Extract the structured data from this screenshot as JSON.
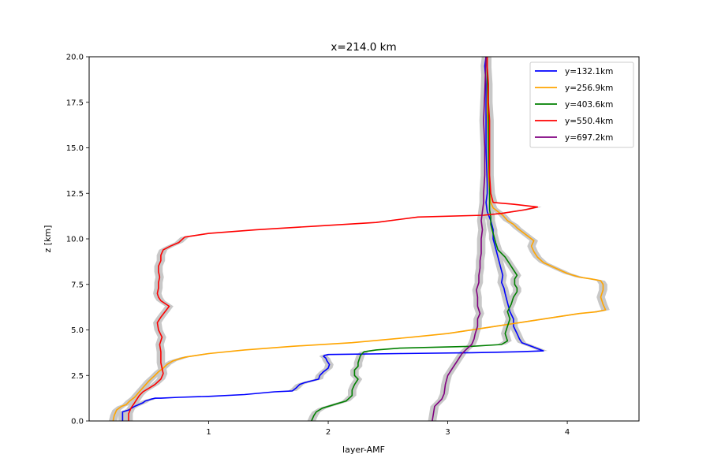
{
  "chart_data": {
    "type": "line",
    "title": "x=214.0 km",
    "xlabel": "layer-AMF",
    "ylabel": "z [km]",
    "xlim": [
      0.0,
      4.6
    ],
    "ylim": [
      0.0,
      20.0
    ],
    "xticks": [
      1,
      2,
      3,
      4
    ],
    "yticks": [
      0.0,
      2.5,
      5.0,
      7.5,
      10.0,
      12.5,
      15.0,
      17.5,
      20.0
    ],
    "xtick_labels": [
      "1",
      "2",
      "3",
      "4"
    ],
    "ytick_labels": [
      "0.0",
      "2.5",
      "5.0",
      "7.5",
      "10.0",
      "12.5",
      "15.0",
      "17.5",
      "20.0"
    ],
    "grid": false,
    "legend_position": "upper-right",
    "uncertainty_band_color": "#c8c8c8",
    "series": [
      {
        "name": "y=132.1km",
        "color": "#0000ff",
        "x": [
          0.28,
          0.28,
          0.33,
          0.38,
          0.45,
          0.47,
          0.5,
          0.52,
          0.55,
          0.6,
          0.75,
          1.0,
          1.3,
          1.55,
          1.7,
          1.73,
          1.76,
          1.8,
          1.92,
          1.93,
          1.96,
          2.0,
          2.01,
          1.99,
          1.98,
          1.96,
          1.97,
          2.0,
          2.6,
          3.2,
          3.6,
          3.8,
          3.7,
          3.62,
          3.6,
          3.58,
          3.55,
          3.55,
          3.52,
          3.5,
          3.48,
          3.47,
          3.45,
          3.46,
          3.44,
          3.42,
          3.4,
          3.38,
          3.38,
          3.36,
          3.33,
          3.32,
          3.33,
          3.33,
          3.32,
          3.32,
          3.32,
          3.31,
          3.32
        ],
        "y": [
          0.0,
          0.5,
          0.6,
          0.8,
          1.0,
          1.1,
          1.15,
          1.2,
          1.25,
          1.25,
          1.3,
          1.35,
          1.45,
          1.6,
          1.65,
          1.8,
          2.0,
          2.1,
          2.3,
          2.5,
          2.7,
          2.9,
          3.1,
          3.3,
          3.45,
          3.55,
          3.6,
          3.65,
          3.7,
          3.75,
          3.8,
          3.85,
          4.1,
          4.3,
          4.5,
          4.8,
          5.2,
          5.6,
          6.0,
          6.5,
          7.0,
          7.3,
          7.6,
          8.0,
          8.5,
          9.0,
          9.5,
          10.0,
          10.5,
          11.0,
          11.5,
          12.0,
          12.5,
          13.0,
          15.0,
          17.0,
          18.5,
          19.5,
          20.0
        ]
      },
      {
        "name": "y=256.9km",
        "color": "#ffa500",
        "x": [
          0.2,
          0.21,
          0.23,
          0.27,
          0.31,
          0.34,
          0.38,
          0.42,
          0.46,
          0.5,
          0.55,
          0.58,
          0.62,
          0.65,
          0.7,
          0.8,
          1.0,
          1.3,
          1.7,
          2.2,
          2.7,
          3.0,
          3.3,
          3.6,
          3.9,
          4.1,
          4.25,
          4.32,
          4.3,
          4.28,
          4.3,
          4.3,
          4.28,
          4.2,
          4.1,
          4.0,
          3.9,
          3.8,
          3.75,
          3.72,
          3.7,
          3.72,
          3.68,
          3.62,
          3.58,
          3.55,
          3.5,
          3.46,
          3.42,
          3.38,
          3.36,
          3.35,
          3.34,
          3.34,
          3.33,
          3.33,
          3.33
        ],
        "y": [
          0.0,
          0.3,
          0.6,
          0.8,
          0.9,
          1.1,
          1.3,
          1.6,
          1.9,
          2.2,
          2.5,
          2.7,
          2.9,
          3.1,
          3.3,
          3.5,
          3.7,
          3.9,
          4.1,
          4.3,
          4.6,
          4.8,
          5.1,
          5.4,
          5.7,
          5.9,
          6.0,
          6.1,
          6.4,
          6.8,
          7.2,
          7.5,
          7.7,
          7.8,
          7.9,
          8.1,
          8.4,
          8.7,
          9.0,
          9.3,
          9.6,
          9.9,
          10.1,
          10.4,
          10.6,
          10.8,
          11.0,
          11.3,
          11.5,
          11.7,
          12.0,
          12.5,
          13.5,
          15.0,
          17.0,
          19.0,
          20.0
        ]
      },
      {
        "name": "y=403.6km",
        "color": "#008000",
        "x": [
          1.86,
          1.88,
          1.9,
          1.95,
          2.05,
          2.15,
          2.2,
          2.2,
          2.22,
          2.25,
          2.22,
          2.22,
          2.25,
          2.25,
          2.26,
          2.27,
          2.3,
          2.4,
          2.6,
          2.9,
          3.2,
          3.45,
          3.5,
          3.48,
          3.5,
          3.52,
          3.5,
          3.53,
          3.55,
          3.58,
          3.58,
          3.56,
          3.56,
          3.58,
          3.55,
          3.52,
          3.48,
          3.42,
          3.4,
          3.38,
          3.36,
          3.36,
          3.35,
          3.35,
          3.35,
          3.34,
          3.34,
          3.33,
          3.33
        ],
        "y": [
          0.0,
          0.3,
          0.5,
          0.7,
          0.9,
          1.1,
          1.4,
          1.7,
          2.0,
          2.3,
          2.5,
          2.8,
          3.0,
          3.2,
          3.4,
          3.6,
          3.8,
          3.9,
          4.0,
          4.05,
          4.1,
          4.2,
          4.4,
          4.8,
          5.2,
          5.6,
          6.0,
          6.4,
          6.8,
          7.1,
          7.3,
          7.5,
          7.8,
          8.0,
          8.3,
          8.6,
          9.0,
          9.4,
          9.8,
          10.3,
          10.8,
          11.2,
          11.6,
          12.0,
          13.0,
          15.0,
          17.0,
          19.0,
          20.0
        ]
      },
      {
        "name": "y=550.4km",
        "color": "#ff0000",
        "x": [
          0.33,
          0.33,
          0.35,
          0.38,
          0.4,
          0.42,
          0.45,
          0.5,
          0.55,
          0.6,
          0.62,
          0.6,
          0.6,
          0.59,
          0.61,
          0.58,
          0.57,
          0.6,
          0.67,
          0.6,
          0.58,
          0.57,
          0.58,
          0.58,
          0.59,
          0.58,
          0.58,
          0.6,
          0.6,
          0.62,
          0.68,
          0.75,
          0.8,
          1.0,
          1.4,
          1.9,
          2.4,
          2.75,
          3.3,
          3.45,
          3.65,
          3.75,
          3.55,
          3.38,
          3.36,
          3.35,
          3.35,
          3.35,
          3.34,
          3.34,
          3.33,
          3.33
        ],
        "y": [
          0.0,
          0.4,
          0.7,
          1.0,
          1.2,
          1.4,
          1.6,
          1.8,
          2.0,
          2.3,
          2.6,
          3.2,
          3.8,
          4.2,
          4.6,
          5.0,
          5.4,
          5.7,
          6.3,
          6.6,
          6.8,
          7.0,
          7.3,
          7.6,
          7.9,
          8.2,
          8.5,
          8.8,
          9.1,
          9.4,
          9.6,
          9.8,
          10.1,
          10.3,
          10.5,
          10.7,
          10.9,
          11.2,
          11.3,
          11.4,
          11.6,
          11.75,
          11.9,
          12.0,
          12.5,
          13.5,
          15.0,
          16.5,
          17.5,
          18.5,
          19.5,
          20.0
        ]
      },
      {
        "name": "y=697.2km",
        "color": "#800080",
        "x": [
          2.87,
          2.88,
          2.89,
          2.92,
          2.95,
          2.97,
          2.98,
          3.0,
          3.05,
          3.08,
          3.1,
          3.12,
          3.15,
          3.2,
          3.22,
          3.23,
          3.25,
          3.25,
          3.27,
          3.25,
          3.25,
          3.24,
          3.26,
          3.26,
          3.27,
          3.27,
          3.28,
          3.28,
          3.28,
          3.29,
          3.28,
          3.29,
          3.3,
          3.3,
          3.31,
          3.31,
          3.3,
          3.31,
          3.32
        ],
        "y": [
          0.0,
          0.4,
          0.8,
          1.0,
          1.2,
          1.5,
          2.0,
          2.5,
          3.0,
          3.3,
          3.5,
          3.7,
          3.9,
          4.2,
          4.5,
          4.8,
          5.2,
          5.6,
          5.9,
          6.3,
          6.8,
          7.2,
          7.6,
          8.0,
          8.4,
          8.8,
          9.2,
          9.6,
          10.0,
          10.5,
          11.0,
          11.5,
          12.0,
          12.5,
          13.5,
          15.0,
          16.5,
          18.0,
          20.0
        ]
      }
    ]
  }
}
